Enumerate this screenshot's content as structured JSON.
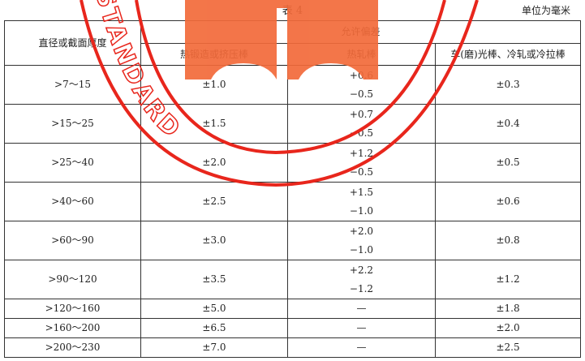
{
  "caption": "表 4",
  "unit": "单位为毫米",
  "watermark": {
    "text": "STANDARD",
    "ring_color": "#e8261c",
    "logo_color": "#f26a3a"
  },
  "table": {
    "col0_header": "直径或截面厚度",
    "group_header": "允许偏差",
    "sub_headers": [
      "热锻造或挤压棒",
      "热轧棒",
      "车(磨)光棒、冷轧或冷拉棒"
    ],
    "rows": [
      {
        "size": ">7～15",
        "forged": "±1.0",
        "hot_plus": "+0.6",
        "hot_minus": "−0.5",
        "cold": "±0.3"
      },
      {
        "size": ">15～25",
        "forged": "±1.5",
        "hot_plus": "+0.7",
        "hot_minus": "−0.5",
        "cold": "±0.4"
      },
      {
        "size": ">25～40",
        "forged": "±2.0",
        "hot_plus": "+1.2",
        "hot_minus": "−0.5",
        "cold": "±0.5"
      },
      {
        "size": ">40～60",
        "forged": "±2.5",
        "hot_plus": "+1.5",
        "hot_minus": "−1.0",
        "cold": "±0.6"
      },
      {
        "size": ">60～90",
        "forged": "±3.0",
        "hot_plus": "+2.0",
        "hot_minus": "−1.0",
        "cold": "±0.8"
      },
      {
        "size": ">90～120",
        "forged": "±3.5",
        "hot_plus": "+2.2",
        "hot_minus": "−1.2",
        "cold": "±1.2"
      },
      {
        "size": ">120～160",
        "forged": "±5.0",
        "hot": "—",
        "cold": "±1.8"
      },
      {
        "size": ">160～200",
        "forged": "±6.5",
        "hot": "—",
        "cold": "±2.0"
      },
      {
        "size": ">200～230",
        "forged": "±7.0",
        "hot": "—",
        "cold": "±2.5"
      }
    ]
  }
}
